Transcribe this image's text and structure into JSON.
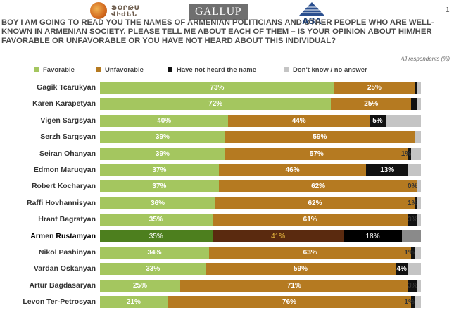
{
  "page_number": "1",
  "logos": {
    "left_wordmark": "ՖՕՐԹՍ ՎԻԺԵՆ",
    "gallup": "GALLUP",
    "asa": "ASA"
  },
  "question_text": "BOY I AM GOING TO READ YOU THE NAMES OF ARMENIAN POLITICIANS AND OTHER PEOPLE WHO ARE WELL-KNOWN IN ARMENIAN SOCIETY. PLEASE TELL ME ABOUT EACH OF THEM – IS YOUR OPINION ABOUT HIM/HER FAVORABLE OR UNFAVORABLE OR YOU HAVE NOT HEARD ABOUT THIS INDIVIDUAL?",
  "respondents_note": "All respondents (%)",
  "colors": {
    "favorable": "#a4c65f",
    "unfavorable": "#b57a21",
    "not_heard": "#111111",
    "dont_know": "#c4c4c4",
    "hl_favorable": "#4d7f1e",
    "hl_unfavorable": "#5a2a0f",
    "hl_not_heard": "#000000",
    "hl_dont_know": "#8a8a8a"
  },
  "legend": [
    {
      "label": "Favorable",
      "color": "#a4c65f"
    },
    {
      "label": "Unfavorable",
      "color": "#b57a21"
    },
    {
      "label": "Have not heard the name",
      "color": "#111111"
    },
    {
      "label": "Don't know / no answer",
      "color": "#c4c4c4"
    }
  ],
  "chart_data": {
    "type": "bar",
    "orientation": "horizontal-stacked",
    "categories": [
      "Gagik Tcarukyan",
      "Karen Karapetyan",
      "Vigen Sargsyan",
      "Serzh Sargsyan",
      "Seiran Ohanyan",
      "Edmon Maruqyan",
      "Robert Kocharyan",
      "Raffi Hovhannisyan",
      "Hrant Bagratyan",
      "Armen Rustamyan",
      "Nikol Pashinyan",
      "Vardan Oskanyan",
      "Artur Bagdasaryan",
      "Levon Ter-Petrosyan"
    ],
    "highlight_index": 9,
    "series": [
      {
        "name": "Favorable",
        "values": [
          73,
          72,
          40,
          39,
          39,
          37,
          37,
          36,
          35,
          35,
          34,
          33,
          25,
          21
        ]
      },
      {
        "name": "Unfavorable",
        "values": [
          25,
          25,
          44,
          59,
          57,
          46,
          62,
          62,
          61,
          41,
          63,
          59,
          71,
          76
        ]
      },
      {
        "name": "Have not heard the name",
        "values": [
          1,
          2,
          5,
          0,
          1,
          13,
          0,
          1,
          3,
          18,
          1,
          4,
          3,
          1
        ]
      },
      {
        "name": "Don't know / no answer",
        "values": [
          1,
          1,
          11,
          2,
          3,
          4,
          1,
          1,
          1,
          6,
          2,
          4,
          1,
          2
        ]
      }
    ],
    "value_labels": {
      "Favorable": [
        "73%",
        "72%",
        "40%",
        "39%",
        "39%",
        "37%",
        "37%",
        "36%",
        "35%",
        "35%",
        "34%",
        "33%",
        "25%",
        "21%"
      ],
      "Unfavorable": [
        "25%",
        "25%",
        "44%",
        "59%",
        "57%",
        "46%",
        "62%",
        "62%",
        "61%",
        "41%",
        "63%",
        "59%",
        "71%",
        "76%"
      ],
      "Have not heard the name": [
        "",
        "",
        "5%",
        "",
        "1%",
        "13%",
        "0%",
        "1%",
        "3%",
        "18%",
        "1%",
        "4%",
        "3%",
        "1%"
      ]
    },
    "xlim": [
      0,
      100
    ]
  }
}
